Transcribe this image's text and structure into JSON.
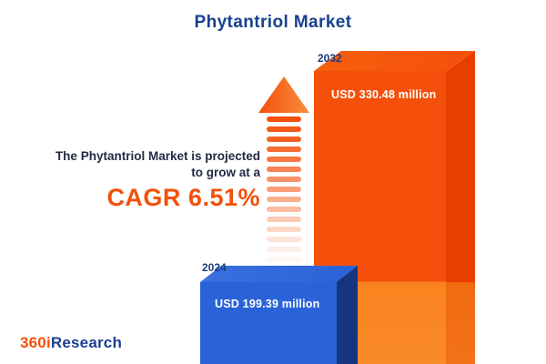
{
  "title": "Phytantriol Market",
  "annotation": {
    "line1": "The Phytantriol Market is projected",
    "line2": "to grow at a",
    "cagr": "CAGR 6.51%"
  },
  "bars": {
    "b2024": {
      "year": "2024",
      "value_label": "USD 199.39 million"
    },
    "b2032": {
      "year": "2032",
      "value_label": "USD 330.48 million"
    }
  },
  "logo": {
    "prefix": "360i",
    "suffix": "Research"
  },
  "colors": {
    "title_navy": "#17418e",
    "accent_orange": "#f4500b",
    "bar_blue": "#2a63d8",
    "bar_blue_side": "#16357e",
    "bar_orange_side": "#e83e00"
  },
  "chart_data": {
    "type": "bar",
    "title": "Phytantriol Market",
    "categories": [
      "2024",
      "2032"
    ],
    "values": [
      199.39,
      330.48
    ],
    "unit": "USD million",
    "value_labels": [
      "USD 199.39 million",
      "USD 330.48 million"
    ],
    "cagr_percent": 6.51,
    "annotation": "The Phytantriol Market is projected to grow at a CAGR 6.51%",
    "xlabel": "",
    "ylabel": "",
    "legend": "none",
    "grid": false
  }
}
